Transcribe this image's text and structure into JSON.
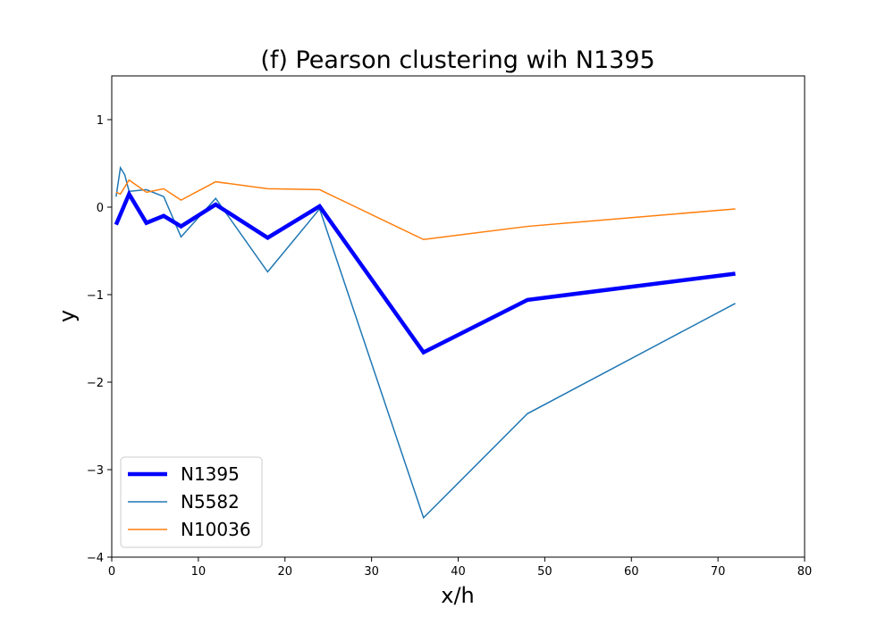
{
  "chart_data": {
    "type": "line",
    "title": "(f) Pearson clustering wih N1395",
    "xlabel": "x/h",
    "ylabel": "y",
    "xlim": [
      0,
      80
    ],
    "ylim": [
      -4,
      1.5
    ],
    "xticks": [
      0,
      10,
      20,
      30,
      40,
      50,
      60,
      70,
      80
    ],
    "yticks": [
      -4,
      -3,
      -2,
      -1,
      0,
      1
    ],
    "ytick_labels": [
      "−4",
      "−3",
      "−2",
      "−1",
      "0",
      "1"
    ],
    "grid": false,
    "legend_position": "lower-left",
    "series": [
      {
        "name": "N5582",
        "color": "#1f77b4",
        "linewidth": 1.5,
        "x": [
          0.5,
          1,
          1.5,
          2,
          4,
          6,
          8,
          12,
          18,
          24,
          36,
          48,
          72
        ],
        "y": [
          0.12,
          0.45,
          0.37,
          0.18,
          0.2,
          0.12,
          -0.34,
          0.1,
          -0.74,
          -0.02,
          -3.55,
          -2.36,
          -1.1
        ]
      },
      {
        "name": "N10036",
        "color": "#ff7f0e",
        "linewidth": 1.5,
        "x": [
          0.5,
          1,
          2,
          4,
          6,
          8,
          12,
          18,
          24,
          36,
          48,
          72
        ],
        "y": [
          0.17,
          0.15,
          0.31,
          0.17,
          0.21,
          0.08,
          0.29,
          0.21,
          0.2,
          -0.37,
          -0.22,
          -0.02
        ]
      },
      {
        "name": "N1395",
        "color": "#0000ff",
        "linewidth": 4.5,
        "x": [
          0.5,
          2,
          4,
          6,
          8,
          12,
          18,
          24,
          36,
          48,
          72
        ],
        "y": [
          -0.2,
          0.15,
          -0.18,
          -0.1,
          -0.22,
          0.03,
          -0.35,
          0.01,
          -1.66,
          -1.06,
          -0.76
        ]
      }
    ],
    "legend_order": [
      "N1395",
      "N5582",
      "N10036"
    ]
  }
}
